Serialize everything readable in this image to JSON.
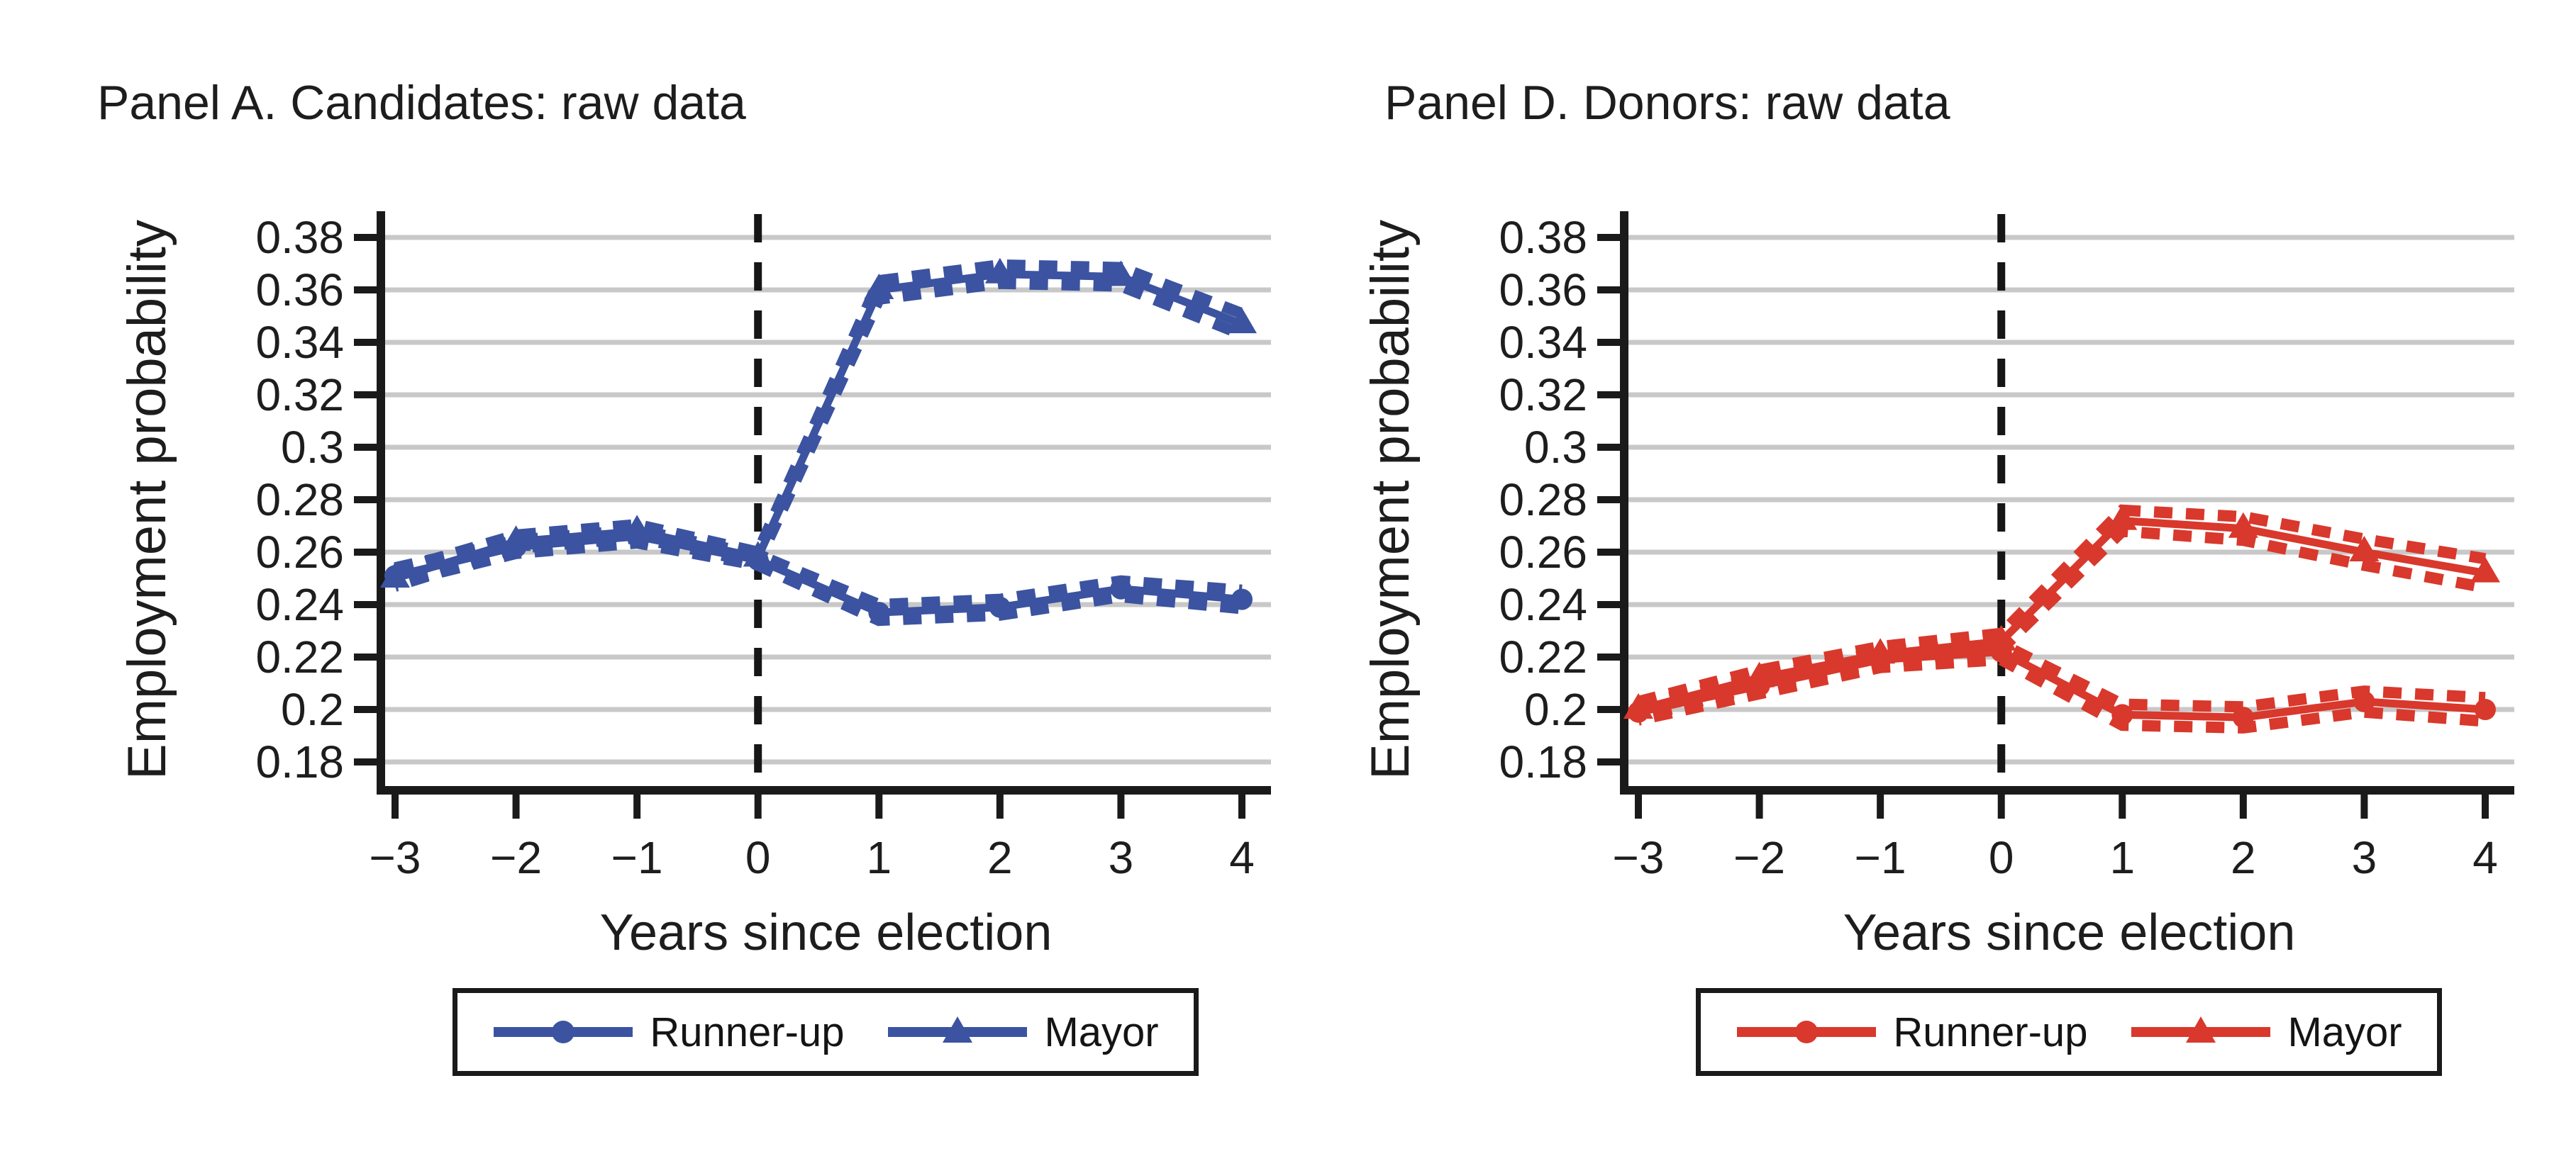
{
  "figure": {
    "background": "#ffffff",
    "text_color": "#1d1d1d",
    "gridline_color": "#c8c8c8",
    "axis_color": "#1a1a1a"
  },
  "chart_data": [
    {
      "type": "line",
      "title": "Panel A. Candidates: raw data",
      "xlabel": "Years since election",
      "ylabel": "Employment probability",
      "color": "#3b53a0",
      "grid": true,
      "legend_position": "bottom",
      "event_vline_x": 0,
      "x": [
        -3,
        -2,
        -1,
        0,
        1,
        2,
        3,
        4
      ],
      "xtick_labels": [
        "−3",
        "−2",
        "−1",
        "0",
        "1",
        "2",
        "3",
        "4"
      ],
      "xlim": [
        -3,
        4
      ],
      "ylim": [
        0.18,
        0.38
      ],
      "yticks": [
        0.38,
        0.36,
        0.34,
        0.32,
        0.3,
        0.28,
        0.26,
        0.24,
        0.22,
        0.2,
        0.18
      ],
      "ytick_labels": [
        "0.38",
        "0.36",
        "0.34",
        "0.32",
        "0.3",
        "0.28",
        "0.26",
        "0.24",
        "0.22",
        "0.2",
        "0.18"
      ],
      "series": [
        {
          "name": "Runner-up",
          "marker": "circle",
          "values": [
            0.251,
            0.262,
            0.266,
            0.257,
            0.237,
            0.239,
            0.246,
            0.242
          ],
          "ci": [
            0.003,
            0.0025,
            0.0025,
            0.002,
            0.003,
            0.003,
            0.003,
            0.0035
          ]
        },
        {
          "name": "Mayor",
          "marker": "triangle",
          "values": [
            0.25,
            0.264,
            0.268,
            0.258,
            0.36,
            0.366,
            0.365,
            0.347
          ],
          "ci": [
            0.003,
            0.0025,
            0.0025,
            0.002,
            0.0035,
            0.0035,
            0.0035,
            0.004
          ]
        }
      ]
    },
    {
      "type": "line",
      "title": "Panel D. Donors: raw data",
      "xlabel": "Years since election",
      "ylabel": "Employment probability",
      "color": "#d9382c",
      "grid": true,
      "legend_position": "bottom",
      "event_vline_x": 0,
      "x": [
        -3,
        -2,
        -1,
        0,
        1,
        2,
        3,
        4
      ],
      "xtick_labels": [
        "−3",
        "−2",
        "−1",
        "0",
        "1",
        "2",
        "3",
        "4"
      ],
      "xlim": [
        -3,
        4
      ],
      "ylim": [
        0.18,
        0.38
      ],
      "yticks": [
        0.38,
        0.36,
        0.34,
        0.32,
        0.3,
        0.28,
        0.26,
        0.24,
        0.22,
        0.2,
        0.18
      ],
      "ytick_labels": [
        "0.38",
        "0.36",
        "0.34",
        "0.32",
        "0.3",
        "0.28",
        "0.26",
        "0.24",
        "0.22",
        "0.2",
        "0.18"
      ],
      "series": [
        {
          "name": "Runner-up",
          "marker": "circle",
          "values": [
            0.199,
            0.209,
            0.219,
            0.222,
            0.198,
            0.197,
            0.203,
            0.2
          ],
          "ci": [
            0.003,
            0.003,
            0.003,
            0.003,
            0.004,
            0.004,
            0.004,
            0.0045
          ]
        },
        {
          "name": "Mayor",
          "marker": "triangle",
          "values": [
            0.2,
            0.212,
            0.221,
            0.226,
            0.272,
            0.269,
            0.26,
            0.252
          ],
          "ci": [
            0.003,
            0.003,
            0.003,
            0.003,
            0.004,
            0.0045,
            0.005,
            0.0055
          ]
        }
      ]
    }
  ]
}
